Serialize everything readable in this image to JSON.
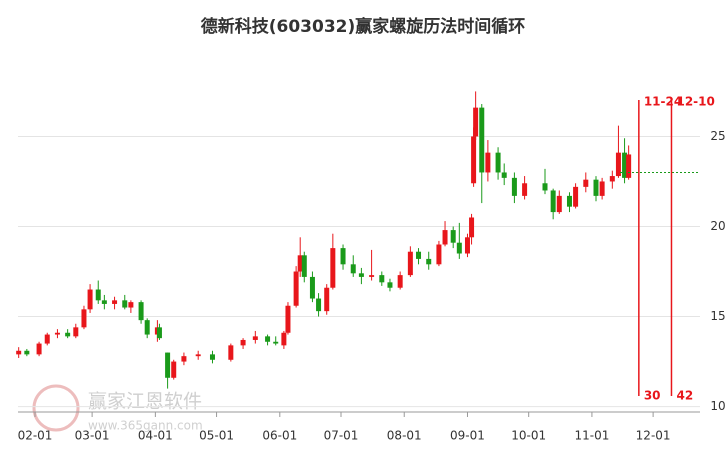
{
  "chart_data": {
    "type": "candlestick",
    "title": "德新科技(603032)赢家螺旋历法时间循环",
    "up_color": "#e8161b",
    "down_color": "#1a9a1a",
    "ylim": [
      9.7,
      28.8
    ],
    "yticks": [
      10,
      15,
      20,
      25
    ],
    "grid": true,
    "xticks": [
      "02-01",
      "03-01",
      "04-01",
      "05-01",
      "06-01",
      "07-01",
      "08-01",
      "09-01",
      "10-01",
      "11-01",
      "12-01"
    ],
    "x": [
      "01-24",
      "01-28",
      "02-03",
      "02-07",
      "02-12",
      "02-17",
      "02-21",
      "02-25",
      "02-28",
      "03-04",
      "03-07",
      "03-12",
      "03-17",
      "03-20",
      "03-25",
      "03-28",
      "04-02",
      "04-03",
      "04-07",
      "04-10",
      "04-15",
      "04-22",
      "04-29",
      "05-08",
      "05-14",
      "05-20",
      "05-26",
      "05-30",
      "06-03",
      "06-05",
      "06-09",
      "06-11",
      "06-13",
      "06-17",
      "06-20",
      "06-24",
      "06-27",
      "07-02",
      "07-07",
      "07-11",
      "07-16",
      "07-21",
      "07-25",
      "07-30",
      "08-04",
      "08-08",
      "08-13",
      "08-18",
      "08-21",
      "08-25",
      "08-28",
      "09-01",
      "09-03",
      "09-04",
      "09-05",
      "09-08",
      "09-11",
      "09-16",
      "09-19",
      "09-24",
      "09-29",
      "10-09",
      "10-13",
      "10-16",
      "10-21",
      "10-24",
      "10-29",
      "11-03",
      "11-06",
      "11-11",
      "11-14",
      "11-17",
      "11-19"
    ],
    "open": [
      12.9,
      13.1,
      12.9,
      13.5,
      14.0,
      14.1,
      13.9,
      14.4,
      15.4,
      16.5,
      15.9,
      15.7,
      15.9,
      15.5,
      15.8,
      14.8,
      14.0,
      14.4,
      13.0,
      11.6,
      12.5,
      12.8,
      12.9,
      12.6,
      13.4,
      13.7,
      13.9,
      13.6,
      13.4,
      14.1,
      15.6,
      17.5,
      18.4,
      17.2,
      16.0,
      15.3,
      16.6,
      18.8,
      17.9,
      17.4,
      17.2,
      17.3,
      16.9,
      16.6,
      17.3,
      18.6,
      18.2,
      17.9,
      19.0,
      19.8,
      19.1,
      18.5,
      19.4,
      22.4,
      25.0,
      26.6,
      23.0,
      24.1,
      23.0,
      22.7,
      21.7,
      22.4,
      22.0,
      20.8,
      21.7,
      21.1,
      22.2,
      22.6,
      21.7,
      22.5,
      22.8,
      24.1,
      22.7
    ],
    "high": [
      13.3,
      13.2,
      13.6,
      14.1,
      14.3,
      14.3,
      14.6,
      15.6,
      16.8,
      17.0,
      16.2,
      16.1,
      16.2,
      15.9,
      15.9,
      14.9,
      14.8,
      14.6,
      13.0,
      12.6,
      13.0,
      13.1,
      13.1,
      13.5,
      13.8,
      14.2,
      14.0,
      13.9,
      14.2,
      15.8,
      17.8,
      19.4,
      18.6,
      17.5,
      16.3,
      16.8,
      19.6,
      19.0,
      18.4,
      17.7,
      18.7,
      17.5,
      17.1,
      17.5,
      18.9,
      18.8,
      18.6,
      19.2,
      20.3,
      20.0,
      20.2,
      19.6,
      20.7,
      25.5,
      27.5,
      26.8,
      24.8,
      24.4,
      23.5,
      23.0,
      22.8,
      23.2,
      22.1,
      22.0,
      21.9,
      22.4,
      23.0,
      22.8,
      22.7,
      23.1,
      25.6,
      24.9,
      24.5
    ],
    "low": [
      12.7,
      12.8,
      12.8,
      13.4,
      13.8,
      13.8,
      13.8,
      14.3,
      15.2,
      15.7,
      15.4,
      15.4,
      15.4,
      15.2,
      14.6,
      13.8,
      13.6,
      13.7,
      11.0,
      11.5,
      12.3,
      12.6,
      12.4,
      12.5,
      13.2,
      13.5,
      13.4,
      13.4,
      13.2,
      14.0,
      15.5,
      17.2,
      16.9,
      15.8,
      15.0,
      15.1,
      16.5,
      17.6,
      17.2,
      16.8,
      17.0,
      16.7,
      16.4,
      16.5,
      17.2,
      17.9,
      17.6,
      17.8,
      18.9,
      18.8,
      18.2,
      18.3,
      19.0,
      22.2,
      24.8,
      21.3,
      22.5,
      22.6,
      22.3,
      21.3,
      21.5,
      21.8,
      20.4,
      20.7,
      20.8,
      21.0,
      21.9,
      21.4,
      21.5,
      22.1,
      22.7,
      22.4,
      22.6
    ],
    "close": [
      13.1,
      12.9,
      13.5,
      14.0,
      14.1,
      13.9,
      14.4,
      15.4,
      16.5,
      15.9,
      15.7,
      15.9,
      15.5,
      15.8,
      14.8,
      14.0,
      14.4,
      13.8,
      11.6,
      12.5,
      12.8,
      12.9,
      12.6,
      13.4,
      13.7,
      13.9,
      13.6,
      13.5,
      14.1,
      15.6,
      17.5,
      18.4,
      17.2,
      16.0,
      15.3,
      16.6,
      18.8,
      17.9,
      17.4,
      17.2,
      17.3,
      16.9,
      16.6,
      17.3,
      18.6,
      18.2,
      17.9,
      19.0,
      19.8,
      19.1,
      18.5,
      19.4,
      20.5,
      25.0,
      26.6,
      23.0,
      24.1,
      23.0,
      22.7,
      21.7,
      22.4,
      22.0,
      20.8,
      21.7,
      21.1,
      22.2,
      22.6,
      21.7,
      22.5,
      22.8,
      24.1,
      22.7,
      24.0
    ],
    "ref_line": 23.0,
    "cycle_lines": [
      {
        "date": "11-24",
        "count": 30
      },
      {
        "date": "12-10",
        "count": 42
      }
    ]
  },
  "watermark": {
    "text": "赢家江恩软件",
    "url": "www.365gann.com"
  }
}
